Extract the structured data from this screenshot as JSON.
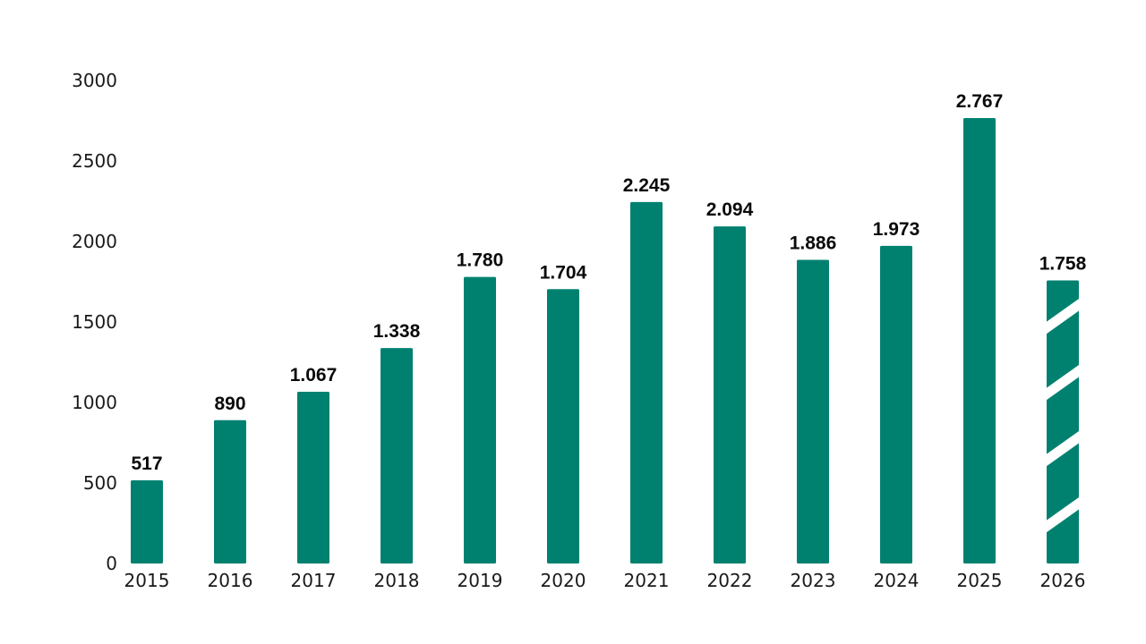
{
  "colors": {
    "bar": "#008170",
    "stripe": "#ffffff"
  },
  "chart_data": {
    "type": "bar",
    "title": "",
    "xlabel": "",
    "ylabel": "",
    "ylim": [
      0,
      3000
    ],
    "yticks": [
      0,
      500,
      1000,
      1500,
      2000,
      2500,
      3000
    ],
    "ytick_labels": [
      "0",
      "500",
      "1000",
      "1500",
      "2000",
      "2500",
      "3000"
    ],
    "grid": false,
    "legend": "none",
    "categories": [
      "2015",
      "2016",
      "2017",
      "2018",
      "2019",
      "2020",
      "2021",
      "2022",
      "2023",
      "2024",
      "2025",
      "2026"
    ],
    "values": [
      517,
      890,
      1067,
      1338,
      1780,
      1704,
      2245,
      2094,
      1886,
      1973,
      2767,
      1758
    ],
    "value_labels": [
      "517",
      "890",
      "1.067",
      "1.338",
      "1.780",
      "1.704",
      "2.245",
      "2.094",
      "1.886",
      "1.973",
      "2.767",
      "1.758"
    ],
    "hatched": [
      false,
      false,
      false,
      false,
      false,
      false,
      false,
      false,
      false,
      false,
      false,
      true
    ]
  }
}
